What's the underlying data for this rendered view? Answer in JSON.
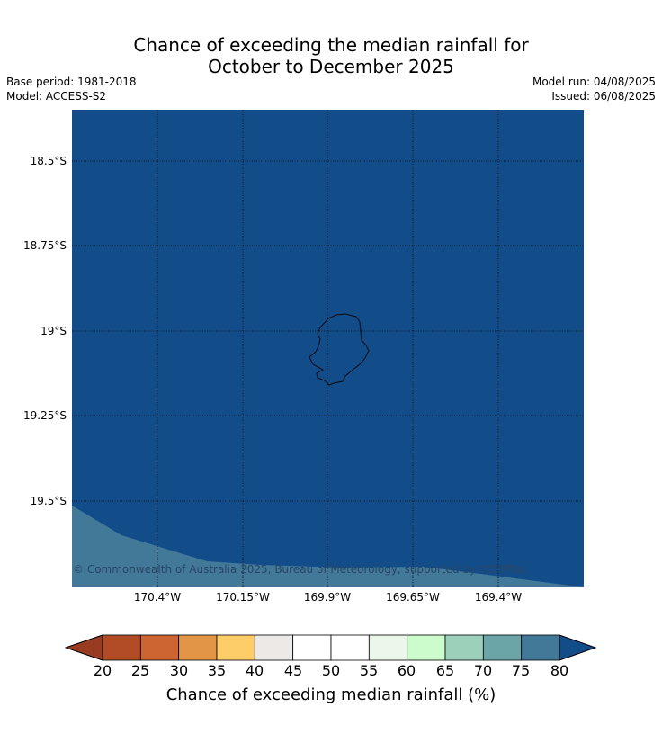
{
  "title": {
    "line1": "Chance of exceeding the median rainfall for",
    "line2": "October to December 2025"
  },
  "meta": {
    "base_period": "Base period: 1981-2018",
    "model": "Model: ACCESS-S2",
    "model_run": "Model run: 04/08/2025",
    "issued": "Issued: 06/08/2025"
  },
  "map": {
    "ocean_color": "#134d89",
    "lower_band_color": "#427998",
    "coastline_color": "#0a0a14",
    "copyright": "© Commonwealth of Australia 2025, Bureau of Meteorology, supported by COSPPac",
    "lat_labels": [
      "18.5°S",
      "18.75°S",
      "19°S",
      "19.25°S",
      "19.5°S"
    ],
    "lon_labels": [
      "170.4°W",
      "170.15°W",
      "169.9°W",
      "169.65°W",
      "169.4°W"
    ]
  },
  "colorbar": {
    "label": "Chance of exceeding median rainfall (%)",
    "ticks": [
      "20",
      "25",
      "30",
      "35",
      "40",
      "45",
      "50",
      "55",
      "60",
      "65",
      "70",
      "75",
      "80"
    ],
    "colors": [
      "#b24c26",
      "#cd6533",
      "#e29547",
      "#fdcd6a",
      "#ede9e6",
      "#ffffff",
      "#ffffff",
      "#eaf7ea",
      "#ccfbcc",
      "#9dd0bb",
      "#6ca5a7",
      "#427998"
    ],
    "low_extend_color": "#993a22",
    "high_extend_color": "#134d89"
  }
}
